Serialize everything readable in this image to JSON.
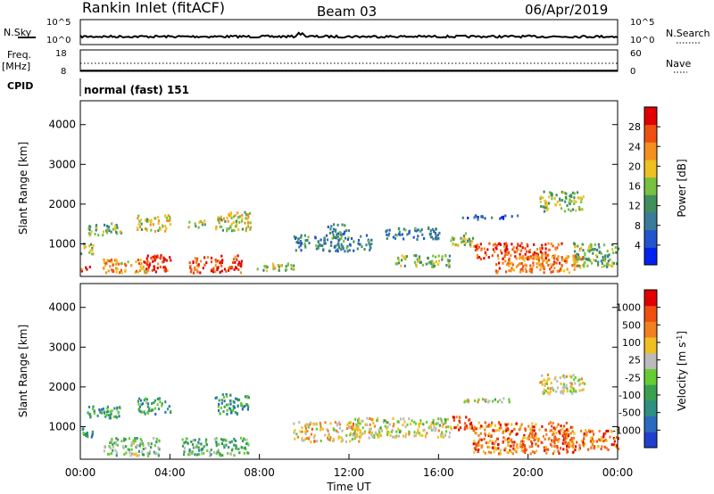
{
  "header": {
    "title": "Rankin Inlet (fitACF)",
    "beam": "Beam 03",
    "date": "06/Apr/2019"
  },
  "strips": {
    "nsky_label": "N.Sky",
    "nsky_ticks": [
      "10^5",
      "10^0"
    ],
    "nsearch_label": "N.Search",
    "nsearch_ticks": [
      "10^5",
      "10^0"
    ],
    "freq_label_top": "Freq.",
    "freq_label_bottom": "[MHz]",
    "freq_ticks": [
      "18",
      "8"
    ],
    "nave_label": "Nave",
    "nave_ticks": [
      "60",
      "0"
    ],
    "cpid_label": "CPID",
    "cpid_value": "normal (fast) 151"
  },
  "x_axis": {
    "label": "Time UT",
    "ticks": [
      "00:00",
      "04:00",
      "08:00",
      "12:00",
      "16:00",
      "20:00",
      "00:00"
    ]
  },
  "chart_data": [
    {
      "type": "heatmap",
      "ylabel": "Slant Range [km]",
      "ylim": [
        180,
        4600
      ],
      "yticks": [
        1000,
        2000,
        3000,
        4000
      ],
      "colorbar": {
        "label": "Power [dB]",
        "ticks": [
          "4",
          "8",
          "12",
          "16",
          "20",
          "24",
          "28"
        ],
        "colors": [
          "#0022ee",
          "#2255cc",
          "#3a7a9a",
          "#3f8f60",
          "#77c040",
          "#eec020",
          "#f49020",
          "#ee5010",
          "#e00000"
        ]
      },
      "regions": [
        {
          "t": [
            0.0,
            0.6
          ],
          "r": [
            700,
            1000
          ],
          "level": 0.55
        },
        {
          "t": [
            0.0,
            0.4
          ],
          "r": [
            250,
            450
          ],
          "level": 0.9
        },
        {
          "t": [
            0.3,
            1.8
          ],
          "r": [
            1200,
            1500
          ],
          "level": 0.45
        },
        {
          "t": [
            2.5,
            4.0
          ],
          "r": [
            1300,
            1700
          ],
          "level": 0.6
        },
        {
          "t": [
            4.8,
            5.6
          ],
          "r": [
            1400,
            1600
          ],
          "level": 0.55
        },
        {
          "t": [
            6.0,
            7.6
          ],
          "r": [
            1300,
            1800
          ],
          "level": 0.55
        },
        {
          "t": [
            1.0,
            3.0
          ],
          "r": [
            250,
            600
          ],
          "level": 0.7
        },
        {
          "t": [
            2.8,
            4.0
          ],
          "r": [
            250,
            700
          ],
          "level": 0.92
        },
        {
          "t": [
            4.8,
            7.2
          ],
          "r": [
            250,
            700
          ],
          "level": 0.88
        },
        {
          "t": [
            7.8,
            9.5
          ],
          "r": [
            300,
            500
          ],
          "level": 0.5
        },
        {
          "t": [
            9.5,
            13.0
          ],
          "r": [
            800,
            1200
          ],
          "level": 0.3
        },
        {
          "t": [
            11.0,
            12.0
          ],
          "r": [
            1200,
            1500
          ],
          "level": 0.3
        },
        {
          "t": [
            13.5,
            16.0
          ],
          "r": [
            1100,
            1400
          ],
          "level": 0.3
        },
        {
          "t": [
            14.0,
            16.5
          ],
          "r": [
            400,
            700
          ],
          "level": 0.45
        },
        {
          "t": [
            16.5,
            17.5
          ],
          "r": [
            900,
            1250
          ],
          "level": 0.5
        },
        {
          "t": [
            17.0,
            19.5
          ],
          "r": [
            1600,
            1700
          ],
          "level": 0.2
        },
        {
          "t": [
            17.5,
            21.5
          ],
          "r": [
            600,
            1000
          ],
          "level": 0.85
        },
        {
          "t": [
            18.5,
            22.5
          ],
          "r": [
            250,
            700
          ],
          "level": 0.75
        },
        {
          "t": [
            20.5,
            22.5
          ],
          "r": [
            1800,
            2300
          ],
          "level": 0.5
        },
        {
          "t": [
            22.0,
            24.0
          ],
          "r": [
            400,
            1000
          ],
          "level": 0.45
        }
      ]
    },
    {
      "type": "heatmap",
      "ylabel": "Slant Range [km]",
      "ylim": [
        180,
        4600
      ],
      "yticks": [
        1000,
        2000,
        3000,
        4000
      ],
      "colorbar": {
        "label": "Velocity [m s",
        "label_superscript": "-1",
        "label_end": "]",
        "ticks": [
          "1000",
          "500",
          "100",
          "25",
          "-25",
          "-100",
          "-500",
          "-1000"
        ],
        "colors": [
          "#2040cc",
          "#2a6abf",
          "#2e8f82",
          "#3aa050",
          "#66cc33",
          "#bbbbbb",
          "#f0c020",
          "#f08020",
          "#ee5010",
          "#e00000"
        ]
      },
      "regions": [
        {
          "t": [
            0.0,
            0.6
          ],
          "r": [
            700,
            1000
          ],
          "level": 0.3
        },
        {
          "t": [
            0.3,
            1.8
          ],
          "r": [
            1200,
            1500
          ],
          "level": 0.3
        },
        {
          "t": [
            2.5,
            4.0
          ],
          "r": [
            1300,
            1700
          ],
          "level": 0.35
        },
        {
          "t": [
            6.0,
            7.6
          ],
          "r": [
            1300,
            1800
          ],
          "level": 0.3
        },
        {
          "t": [
            1.0,
            3.5
          ],
          "r": [
            250,
            700
          ],
          "level": 0.45
        },
        {
          "t": [
            4.5,
            7.5
          ],
          "r": [
            250,
            700
          ],
          "level": 0.4
        },
        {
          "t": [
            9.5,
            12.5
          ],
          "r": [
            600,
            1100
          ],
          "level": 0.65
        },
        {
          "t": [
            12.0,
            16.5
          ],
          "r": [
            700,
            1200
          ],
          "level": 0.55
        },
        {
          "t": [
            16.5,
            17.5
          ],
          "r": [
            900,
            1250
          ],
          "level": 0.8
        },
        {
          "t": [
            17.5,
            22.0
          ],
          "r": [
            300,
            1100
          ],
          "level": 0.8
        },
        {
          "t": [
            21.0,
            24.0
          ],
          "r": [
            400,
            900
          ],
          "level": 0.78
        },
        {
          "t": [
            20.5,
            22.5
          ],
          "r": [
            1800,
            2300
          ],
          "level": 0.6
        },
        {
          "t": [
            17.0,
            19.5
          ],
          "r": [
            1600,
            1700
          ],
          "level": 0.55
        }
      ]
    }
  ]
}
